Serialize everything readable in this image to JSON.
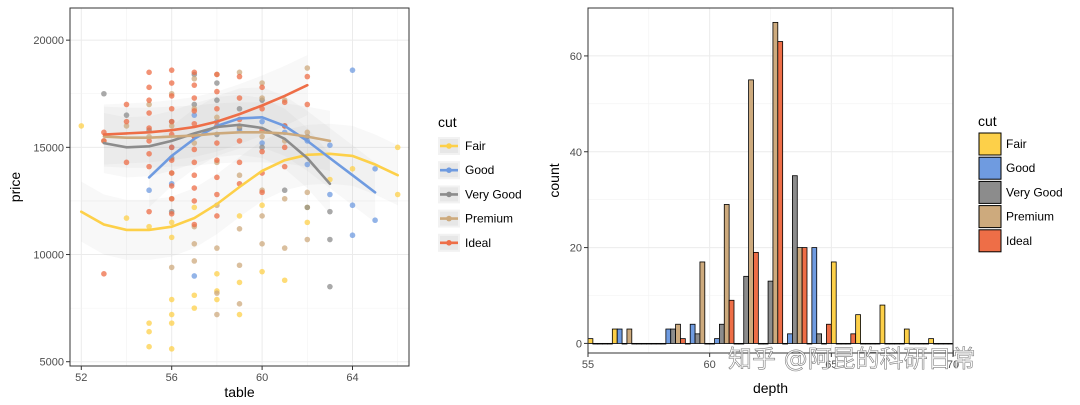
{
  "watermark": "知乎 @阿昆的科研日常",
  "chart_data": [
    {
      "type": "scatter",
      "xlabel": "table",
      "ylabel": "price",
      "xlim": [
        51.5,
        66.5
      ],
      "ylim": [
        4800,
        21500
      ],
      "xticks": [
        52,
        56,
        60,
        64
      ],
      "yticks": [
        5000,
        10000,
        15000,
        20000
      ],
      "grid": true,
      "legend": {
        "title": "cut",
        "placement": "right",
        "style": "line"
      },
      "series": [
        {
          "name": "Fair",
          "color": "#FDD049",
          "points": [
            [
              52,
              16000
            ],
            [
              55,
              6800
            ],
            [
              55,
              6400
            ],
            [
              55,
              5700
            ],
            [
              56,
              5600
            ],
            [
              56,
              6800
            ],
            [
              56,
              7200
            ],
            [
              56,
              7900
            ],
            [
              56,
              10800
            ],
            [
              56,
              11500
            ],
            [
              57,
              7500
            ],
            [
              57,
              8100
            ],
            [
              58,
              7900
            ],
            [
              58,
              8300
            ],
            [
              58,
              9100
            ],
            [
              59,
              7200
            ],
            [
              59,
              8700
            ],
            [
              60,
              12300
            ],
            [
              60,
              9200
            ],
            [
              61,
              8800
            ],
            [
              62,
              12200
            ],
            [
              62,
              11500
            ],
            [
              63,
              13500
            ],
            [
              64,
              14000
            ],
            [
              66,
              15000
            ],
            [
              66,
              12800
            ],
            [
              54,
              11700
            ],
            [
              55,
              11300
            ],
            [
              57,
              12200
            ],
            [
              59,
              11800
            ]
          ],
          "smooth": [
            [
              52,
              12000
            ],
            [
              53,
              11400
            ],
            [
              54,
              11150
            ],
            [
              55,
              11150
            ],
            [
              56,
              11300
            ],
            [
              57,
              11700
            ],
            [
              58,
              12350
            ],
            [
              59,
              13150
            ],
            [
              60,
              13900
            ],
            [
              61,
              14400
            ],
            [
              62,
              14650
            ],
            [
              63,
              14700
            ],
            [
              64,
              14600
            ],
            [
              65,
              14200
            ],
            [
              66,
              13700
            ]
          ]
        },
        {
          "name": "Good",
          "color": "#6F9BE0",
          "points": [
            [
              55,
              13000
            ],
            [
              56,
              13300
            ],
            [
              56,
              15000
            ],
            [
              57,
              9000
            ],
            [
              57,
              16500
            ],
            [
              58,
              16200
            ],
            [
              59,
              15800
            ],
            [
              60,
              16200
            ],
            [
              60,
              15200
            ],
            [
              61,
              15700
            ],
            [
              62,
              15300
            ],
            [
              63,
              12800
            ],
            [
              64,
              18600
            ],
            [
              64,
              12300
            ],
            [
              64,
              10900
            ],
            [
              65,
              14000
            ],
            [
              65,
              11600
            ],
            [
              63,
              15100
            ],
            [
              62,
              14200
            ]
          ],
          "smooth": [
            [
              55,
              13600
            ],
            [
              56,
              14600
            ],
            [
              57,
              15400
            ],
            [
              58,
              16000
            ],
            [
              59,
              16350
            ],
            [
              60,
              16400
            ],
            [
              61,
              16000
            ],
            [
              62,
              15300
            ],
            [
              63,
              14500
            ],
            [
              64,
              13700
            ],
            [
              65,
              12900
            ]
          ]
        },
        {
          "name": "Very Good",
          "color": "#8C8C8C",
          "points": [
            [
              53,
              17500
            ],
            [
              54,
              16500
            ],
            [
              55,
              15800
            ],
            [
              56,
              16200
            ],
            [
              56,
              14500
            ],
            [
              56,
              12000
            ],
            [
              57,
              15500
            ],
            [
              57,
              17000
            ],
            [
              58,
              17200
            ],
            [
              58,
              15600
            ],
            [
              59,
              15900
            ],
            [
              59,
              16800
            ],
            [
              60,
              17200
            ],
            [
              60,
              15000
            ],
            [
              61,
              16000
            ],
            [
              61,
              13000
            ],
            [
              62,
              15500
            ],
            [
              62,
              12200
            ],
            [
              63,
              8500
            ],
            [
              63,
              10700
            ],
            [
              63,
              12000
            ],
            [
              58,
              18000
            ],
            [
              57,
              18400
            ]
          ],
          "smooth": [
            [
              53,
              15200
            ],
            [
              54,
              15000
            ],
            [
              55,
              15050
            ],
            [
              56,
              15300
            ],
            [
              57,
              15650
            ],
            [
              58,
              15950
            ],
            [
              59,
              16050
            ],
            [
              60,
              15900
            ],
            [
              61,
              15400
            ],
            [
              62,
              14500
            ],
            [
              63,
              13300
            ]
          ]
        },
        {
          "name": "Premium",
          "color": "#CDAA7D",
          "points": [
            [
              53,
              15300
            ],
            [
              54,
              16000
            ],
            [
              55,
              17000
            ],
            [
              55,
              15500
            ],
            [
              56,
              17500
            ],
            [
              56,
              16000
            ],
            [
              56,
              13800
            ],
            [
              56,
              12600
            ],
            [
              57,
              18200
            ],
            [
              57,
              16800
            ],
            [
              57,
              15200
            ],
            [
              57,
              11300
            ],
            [
              57,
              9700
            ],
            [
              58,
              18400
            ],
            [
              58,
              16400
            ],
            [
              58,
              14300
            ],
            [
              58,
              12300
            ],
            [
              58,
              10300
            ],
            [
              58,
              8200
            ],
            [
              59,
              18500
            ],
            [
              59,
              16000
            ],
            [
              59,
              13700
            ],
            [
              59,
              11200
            ],
            [
              59,
              9500
            ],
            [
              60,
              18000
            ],
            [
              60,
              17300
            ],
            [
              60,
              15500
            ],
            [
              60,
              13000
            ],
            [
              60,
              11800
            ],
            [
              60,
              10500
            ],
            [
              61,
              17200
            ],
            [
              61,
              15300
            ],
            [
              61,
              12600
            ],
            [
              61,
              10300
            ],
            [
              62,
              18700
            ],
            [
              62,
              15700
            ],
            [
              62,
              12900
            ],
            [
              62,
              10700
            ],
            [
              56,
              9400
            ],
            [
              57,
              10500
            ],
            [
              59,
              7700
            ],
            [
              58,
              7200
            ]
          ],
          "smooth": [
            [
              53,
              15500
            ],
            [
              54,
              15450
            ],
            [
              55,
              15450
            ],
            [
              56,
              15500
            ],
            [
              57,
              15550
            ],
            [
              58,
              15650
            ],
            [
              59,
              15700
            ],
            [
              60,
              15700
            ],
            [
              61,
              15650
            ],
            [
              62,
              15500
            ],
            [
              63,
              15300
            ]
          ]
        },
        {
          "name": "Ideal",
          "color": "#EE6E47",
          "points": [
            [
              53,
              15700
            ],
            [
              53,
              15300
            ],
            [
              54,
              17000
            ],
            [
              54,
              16200
            ],
            [
              55,
              18500
            ],
            [
              55,
              17800
            ],
            [
              55,
              17200
            ],
            [
              55,
              16600
            ],
            [
              55,
              15900
            ],
            [
              55,
              15300
            ],
            [
              55,
              14700
            ],
            [
              55,
              14100
            ],
            [
              56,
              18600
            ],
            [
              56,
              18000
            ],
            [
              56,
              17400
            ],
            [
              56,
              16800
            ],
            [
              56,
              16200
            ],
            [
              56,
              15600
            ],
            [
              56,
              15000
            ],
            [
              56,
              14400
            ],
            [
              56,
              13800
            ],
            [
              56,
              13200
            ],
            [
              56,
              12600
            ],
            [
              57,
              18500
            ],
            [
              57,
              17900
            ],
            [
              57,
              17300
            ],
            [
              57,
              16700
            ],
            [
              57,
              16100
            ],
            [
              57,
              15500
            ],
            [
              57,
              14900
            ],
            [
              57,
              14300
            ],
            [
              57,
              13700
            ],
            [
              57,
              13100
            ],
            [
              57,
              12500
            ],
            [
              58,
              18400
            ],
            [
              58,
              17600
            ],
            [
              58,
              16800
            ],
            [
              58,
              16000
            ],
            [
              58,
              15200
            ],
            [
              58,
              14400
            ],
            [
              58,
              13600
            ],
            [
              58,
              12800
            ],
            [
              59,
              18300
            ],
            [
              59,
              17300
            ],
            [
              59,
              16300
            ],
            [
              59,
              15300
            ],
            [
              59,
              14300
            ],
            [
              59,
              13300
            ],
            [
              60,
              17800
            ],
            [
              60,
              16800
            ],
            [
              60,
              15800
            ],
            [
              60,
              14800
            ],
            [
              60,
              13800
            ],
            [
              61,
              17100
            ],
            [
              61,
              16000
            ],
            [
              61,
              15000
            ],
            [
              62,
              18300
            ],
            [
              62,
              17000
            ],
            [
              53,
              9100
            ],
            [
              55,
              12000
            ],
            [
              56,
              11900
            ],
            [
              57,
              11400
            ],
            [
              58,
              11800
            ],
            [
              60,
              12900
            ],
            [
              61,
              14100
            ],
            [
              54,
              14300
            ]
          ],
          "smooth": [
            [
              53,
              15600
            ],
            [
              54,
              15650
            ],
            [
              55,
              15700
            ],
            [
              56,
              15800
            ],
            [
              57,
              15950
            ],
            [
              58,
              16200
            ],
            [
              59,
              16550
            ],
            [
              60,
              16950
            ],
            [
              61,
              17400
            ],
            [
              62,
              17900
            ]
          ]
        }
      ]
    },
    {
      "type": "bar",
      "xlabel": "depth",
      "ylabel": "count",
      "xlim": [
        55,
        70
      ],
      "ylim": [
        -2,
        70
      ],
      "xticks": [
        55,
        60,
        65,
        70
      ],
      "yticks": [
        0,
        20,
        40,
        60
      ],
      "grid": true,
      "legend": {
        "title": "cut",
        "placement": "right",
        "style": "fill"
      },
      "bin_centers": [
        55.5,
        56.5,
        57.5,
        58.5,
        59.5,
        60.5,
        61.5,
        62.5,
        63.5,
        64.5,
        65.5,
        66.5,
        67.5,
        68.5,
        69.5
      ],
      "series": [
        {
          "name": "Fair",
          "color": "#FDD049",
          "values": [
            1,
            3,
            0,
            0,
            0,
            0,
            0,
            0,
            0,
            0,
            17,
            6,
            8,
            3,
            1
          ]
        },
        {
          "name": "Good",
          "color": "#6F9BE0",
          "values": [
            0,
            3,
            0,
            3,
            4,
            1,
            0,
            0,
            2,
            20,
            0,
            0,
            0,
            0,
            0
          ]
        },
        {
          "name": "Very Good",
          "color": "#8C8C8C",
          "values": [
            0,
            0,
            0,
            3,
            2,
            4,
            14,
            13,
            35,
            2,
            0,
            0,
            0,
            0,
            0
          ]
        },
        {
          "name": "Premium",
          "color": "#CDAA7D",
          "values": [
            0,
            3,
            0,
            4,
            17,
            29,
            55,
            67,
            20,
            0,
            0,
            0,
            0,
            0,
            0
          ]
        },
        {
          "name": "Ideal",
          "color": "#EE6E47",
          "values": [
            0,
            0,
            0,
            1,
            0,
            9,
            19,
            63,
            20,
            4,
            2,
            0,
            0,
            0,
            0
          ]
        }
      ]
    }
  ]
}
